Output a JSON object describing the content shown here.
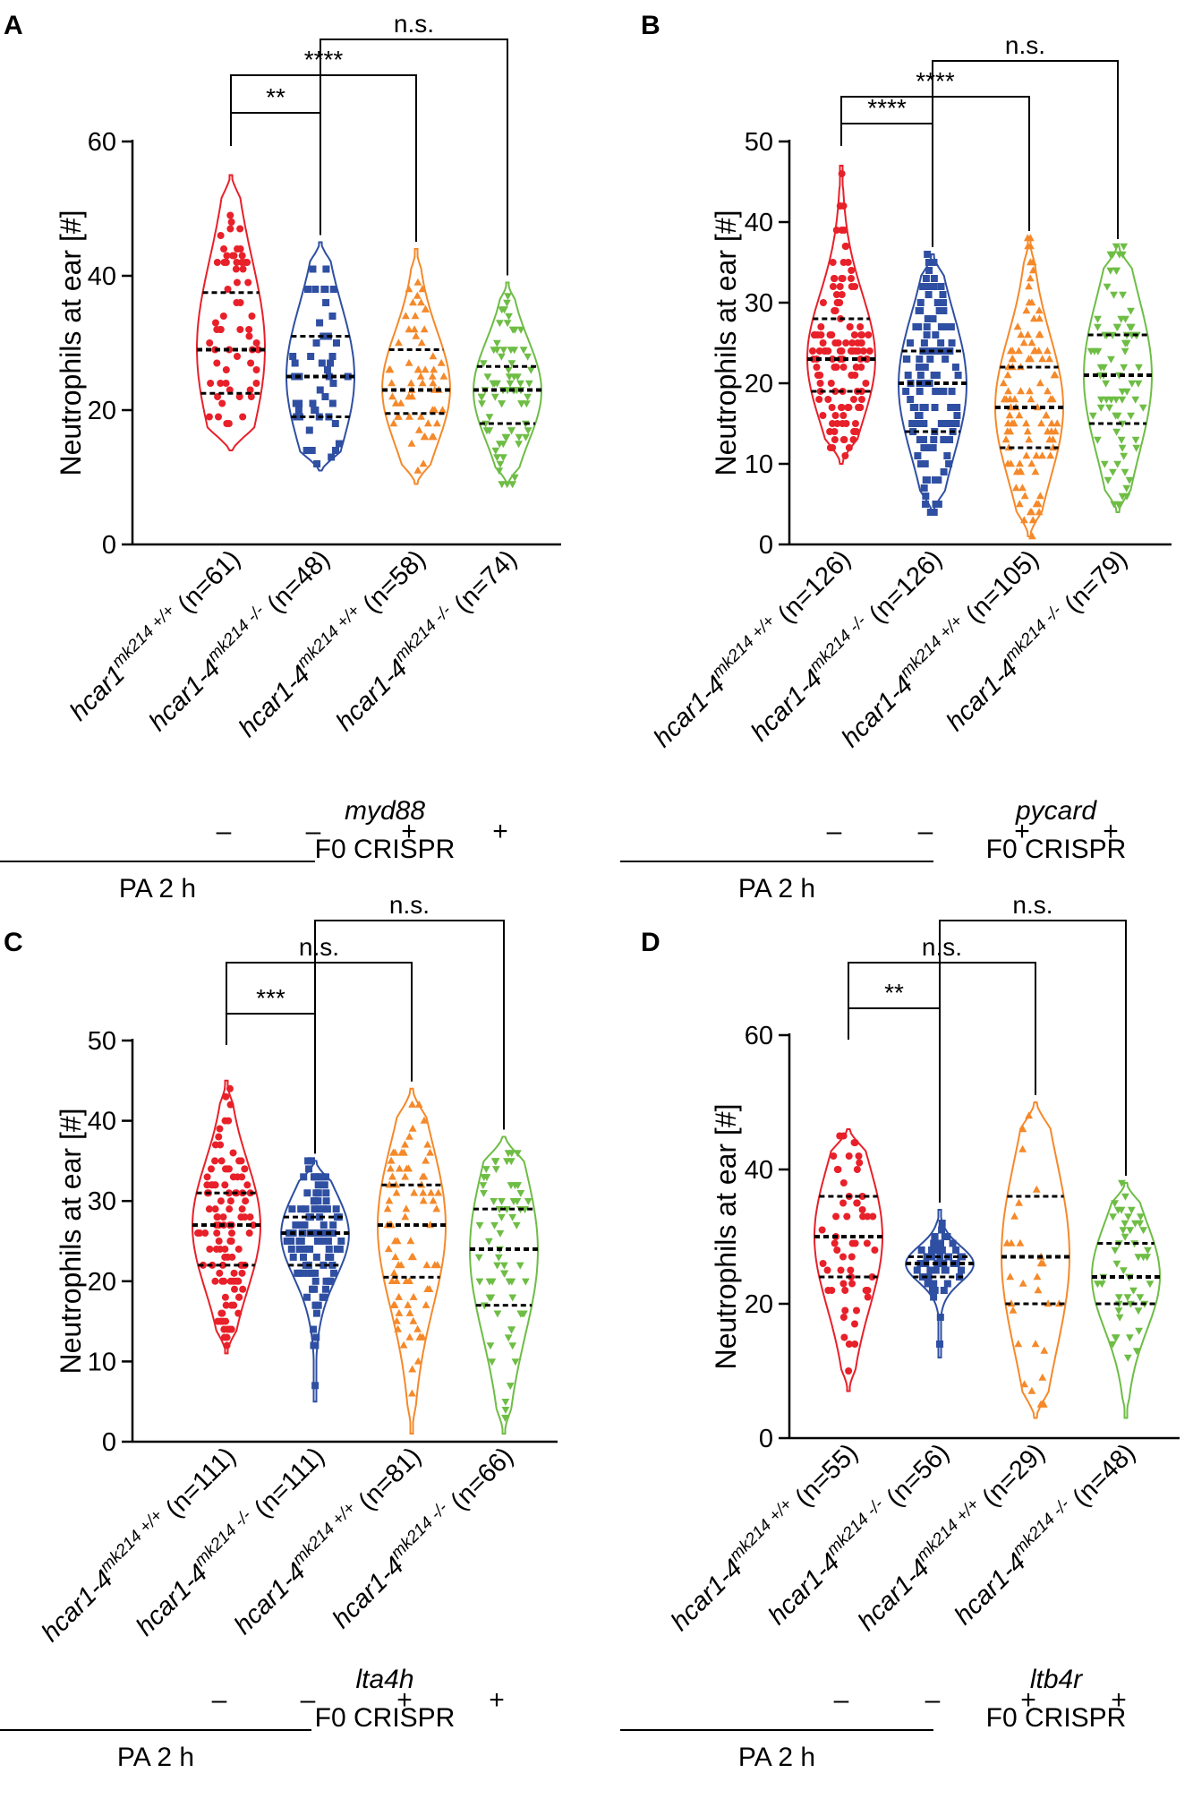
{
  "colors": {
    "red": "#e8202a",
    "blue": "#2f4fa2",
    "orange": "#f5892a",
    "green": "#6ebd45"
  },
  "chart_data": [
    {
      "panel": "A",
      "type": "violin",
      "ylabel": "Neutrophils at ear [#]",
      "ylim": [
        0,
        60
      ],
      "yticks": [
        0,
        20,
        40,
        60
      ],
      "groups": [
        {
          "gene": "hcar1",
          "genotype": "mk214 +/+",
          "n_label": " (n=61)",
          "n": 61,
          "treatment": "–",
          "color": "red",
          "min": 14,
          "max": 55,
          "q1": 22.5,
          "median": 29,
          "q3": 37.5
        },
        {
          "gene": "hcar1-4",
          "genotype": "mk214 -/-",
          "n_label": " (n=48)",
          "n": 48,
          "treatment": "–",
          "color": "blue",
          "min": 11,
          "max": 45,
          "q1": 19,
          "median": 25,
          "q3": 31
        },
        {
          "gene": "hcar1-4",
          "genotype": "mk214 +/+",
          "n_label": " (n=58)",
          "n": 58,
          "treatment": "+",
          "color": "orange",
          "min": 9,
          "max": 44,
          "q1": 19.5,
          "median": 23,
          "q3": 29
        },
        {
          "gene": "hcar1-4",
          "genotype": "mk214 -/-",
          "n_label": " (n=74)",
          "n": 74,
          "treatment": "+",
          "color": "green",
          "min": 9,
          "max": 39,
          "q1": 18,
          "median": 23,
          "q3": 26.5
        }
      ],
      "comparisons": [
        {
          "from": 0,
          "to": 1,
          "label": "**"
        },
        {
          "from": 0,
          "to": 2,
          "label": "****"
        },
        {
          "from": 1,
          "to": 3,
          "label": "n.s."
        }
      ],
      "crispr_gene": "myd88",
      "crispr_label": "F0 CRISPR",
      "pa_label": "PA 2 h"
    },
    {
      "panel": "B",
      "type": "violin",
      "ylabel": "Neutrophils at ear [#]",
      "ylim": [
        0,
        50
      ],
      "yticks": [
        0,
        10,
        20,
        30,
        40,
        50
      ],
      "groups": [
        {
          "gene": "hcar1-4",
          "genotype": "mk214 +/+",
          "n_label": " (n=126)",
          "n": 126,
          "treatment": "–",
          "color": "red",
          "min": 10,
          "max": 47,
          "q1": 19,
          "median": 23,
          "q3": 28
        },
        {
          "gene": "hcar1-4",
          "genotype": "mk214 -/-",
          "n_label": " (n=126)",
          "n": 126,
          "treatment": "–",
          "color": "blue",
          "min": 4,
          "max": 36,
          "q1": 14,
          "median": 20,
          "q3": 24
        },
        {
          "gene": "hcar1-4",
          "genotype": "mk214 +/+",
          "n_label": " (n=105)",
          "n": 105,
          "treatment": "+",
          "color": "orange",
          "min": 1,
          "max": 38,
          "q1": 12,
          "median": 17,
          "q3": 22
        },
        {
          "gene": "hcar1-4",
          "genotype": "mk214 -/-",
          "n_label": " (n=79)",
          "n": 79,
          "treatment": "+",
          "color": "green",
          "min": 4,
          "max": 37,
          "q1": 15,
          "median": 21,
          "q3": 26
        }
      ],
      "comparisons": [
        {
          "from": 0,
          "to": 1,
          "label": "****"
        },
        {
          "from": 0,
          "to": 2,
          "label": "****"
        },
        {
          "from": 1,
          "to": 3,
          "label": "n.s."
        }
      ],
      "crispr_gene": "pycard",
      "crispr_label": "F0 CRISPR",
      "pa_label": "PA 2 h"
    },
    {
      "panel": "C",
      "type": "violin",
      "ylabel": "Neutrophils at ear [#]",
      "ylim": [
        0,
        50
      ],
      "yticks": [
        0,
        10,
        20,
        30,
        40,
        50
      ],
      "groups": [
        {
          "gene": "hcar1-4",
          "genotype": "mk214 +/+",
          "n_label": " (n=111)",
          "n": 111,
          "treatment": "–",
          "color": "red",
          "min": 11,
          "max": 45,
          "q1": 22,
          "median": 27,
          "q3": 31
        },
        {
          "gene": "hcar1-4",
          "genotype": "mk214 -/-",
          "n_label": " (n=111)",
          "n": 111,
          "treatment": "–",
          "color": "blue",
          "min": 5,
          "max": 35,
          "q1": 22,
          "median": 26,
          "q3": 28
        },
        {
          "gene": "hcar1-4",
          "genotype": "mk214 +/+",
          "n_label": " (n=81)",
          "n": 81,
          "treatment": "+",
          "color": "orange",
          "min": 1,
          "max": 44,
          "q1": 20.5,
          "median": 27,
          "q3": 32
        },
        {
          "gene": "hcar1-4",
          "genotype": "mk214 -/-",
          "n_label": " (n=66)",
          "n": 66,
          "treatment": "+",
          "color": "green",
          "min": 1,
          "max": 38,
          "q1": 17,
          "median": 24,
          "q3": 29
        }
      ],
      "comparisons": [
        {
          "from": 0,
          "to": 1,
          "label": "***"
        },
        {
          "from": 0,
          "to": 2,
          "label": "n.s."
        },
        {
          "from": 1,
          "to": 3,
          "label": "n.s."
        }
      ],
      "crispr_gene": "lta4h",
      "crispr_label": "F0 CRISPR",
      "pa_label": "PA 2 h"
    },
    {
      "panel": "D",
      "type": "violin",
      "ylabel": "Neutrophils at ear [#]",
      "ylim": [
        0,
        60
      ],
      "yticks": [
        0,
        20,
        40,
        60
      ],
      "groups": [
        {
          "gene": "hcar1-4",
          "genotype": "mk214 +/+",
          "n_label": " (n=55)",
          "n": 55,
          "treatment": "–",
          "color": "red",
          "min": 7,
          "max": 46,
          "q1": 24,
          "median": 30,
          "q3": 36
        },
        {
          "gene": "hcar1-4",
          "genotype": "mk214 -/-",
          "n_label": " (n=56)",
          "n": 56,
          "treatment": "–",
          "color": "blue",
          "min": 12,
          "max": 34,
          "q1": 24,
          "median": 26,
          "q3": 27
        },
        {
          "gene": "hcar1-4",
          "genotype": "mk214 +/+",
          "n_label": " (n=29)",
          "n": 29,
          "treatment": "+",
          "color": "orange",
          "min": 3,
          "max": 50,
          "q1": 20,
          "median": 27,
          "q3": 36
        },
        {
          "gene": "hcar1-4",
          "genotype": "mk214 -/-",
          "n_label": " (n=48)",
          "n": 48,
          "treatment": "+",
          "color": "green",
          "min": 3,
          "max": 38,
          "q1": 20,
          "median": 24,
          "q3": 29
        }
      ],
      "comparisons": [
        {
          "from": 0,
          "to": 1,
          "label": "**"
        },
        {
          "from": 0,
          "to": 2,
          "label": "n.s."
        },
        {
          "from": 1,
          "to": 3,
          "label": "n.s."
        }
      ],
      "crispr_gene": "ltb4r",
      "crispr_label": "F0 CRISPR",
      "pa_label": "PA 2 h"
    }
  ]
}
